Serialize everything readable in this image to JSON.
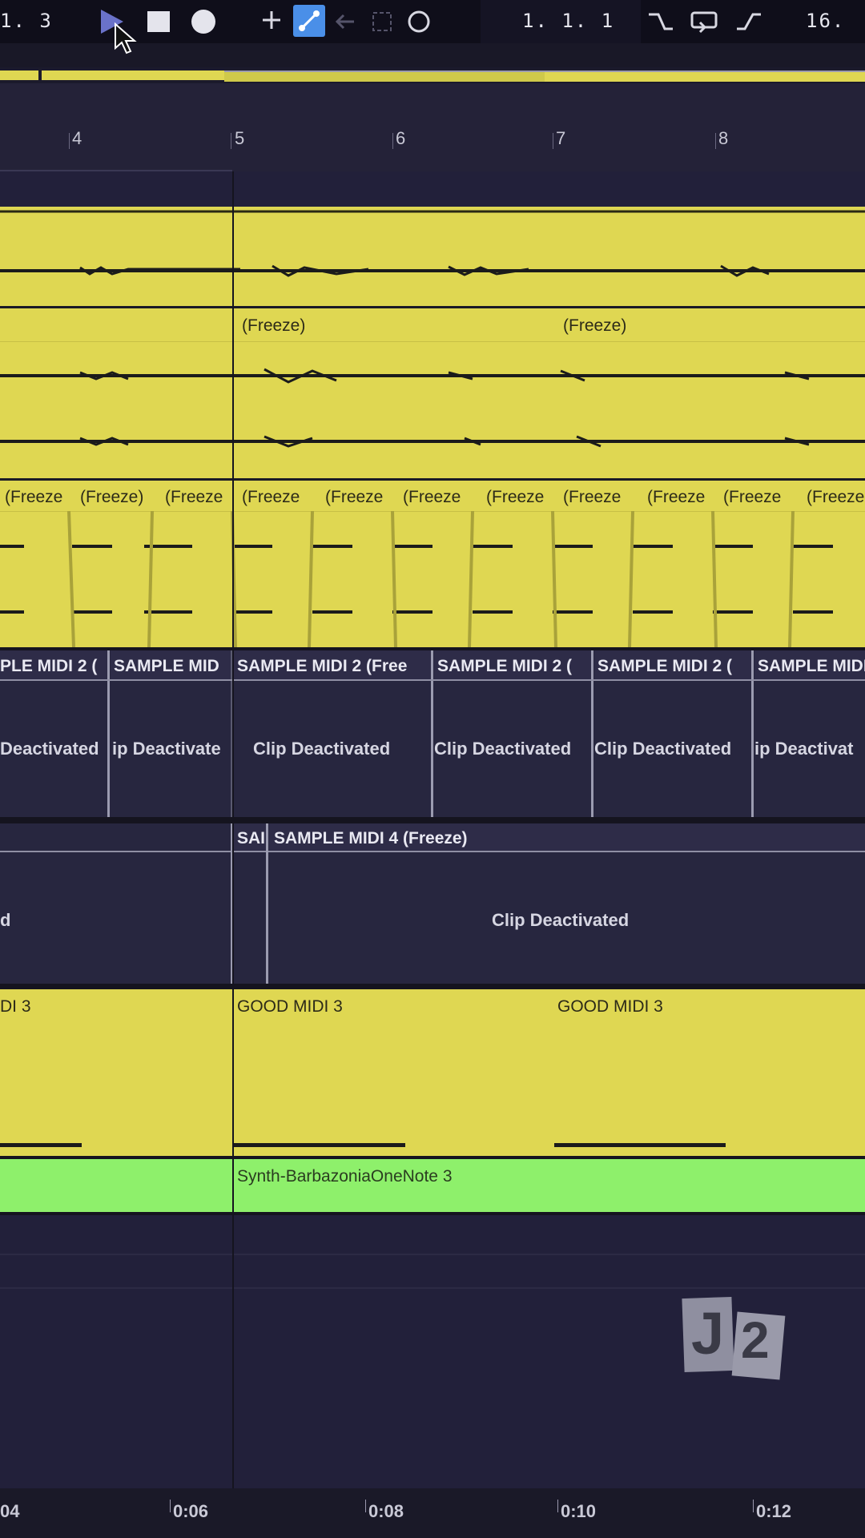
{
  "transport": {
    "position_left": "1. 3",
    "arrangement_position": "1. 1. 1",
    "loop_length": "16.",
    "icons": [
      "play-icon",
      "stop-icon",
      "record-icon",
      "add-icon",
      "automation-arm-icon",
      "back-icon",
      "capture-icon",
      "loop-icon"
    ]
  },
  "ruler": {
    "bars": [
      "4",
      "5",
      "6",
      "7",
      "8"
    ]
  },
  "tracks": {
    "audio2_freeze_a": "(Freeze)",
    "audio2_freeze_b": "(Freeze)",
    "audio3_freeze": [
      "(Freeze",
      "(Freeze)",
      "(Freeze",
      "(Freeze",
      "(Freeze",
      "(Freeze",
      "(Freeze",
      "(Freeze",
      "(Freeze",
      "(Freeze",
      "(Freeze"
    ],
    "sample_midi_2_headers": [
      "PLE MIDI 2 (",
      "SAMPLE MID",
      "SAMPLE MIDI 2 (Free",
      "SAMPLE MIDI 2 (",
      "SAMPLE MIDI 2 (",
      "SAMPLE MIDI"
    ],
    "sample_midi_2_bodies": [
      "Deactivated",
      "ip Deactivate",
      "Clip Deactivated",
      "Clip Deactivated",
      "Clip Deactivated",
      "ip Deactivat"
    ],
    "sample_midi_4_headers": [
      "SAI",
      "SAMPLE MIDI 4 (Freeze)"
    ],
    "sample_midi_4_bodies": [
      "d",
      "Clip Deactivated"
    ],
    "good_midi_3": [
      "DI 3",
      "GOOD MIDI 3",
      "GOOD MIDI 3"
    ],
    "synth_clip": "Synth-BarbazoniaOneNote 3"
  },
  "watermark": {
    "text_left": "J",
    "text_right": "2"
  },
  "time_ruler": {
    "labels": [
      "04",
      "0:06",
      "0:08",
      "0:10",
      "0:12"
    ]
  },
  "colors": {
    "clip_yellow": "#dfd752",
    "clip_green": "#8ef06b",
    "background": "#22203a",
    "accent_blue": "#4a8fe8"
  }
}
